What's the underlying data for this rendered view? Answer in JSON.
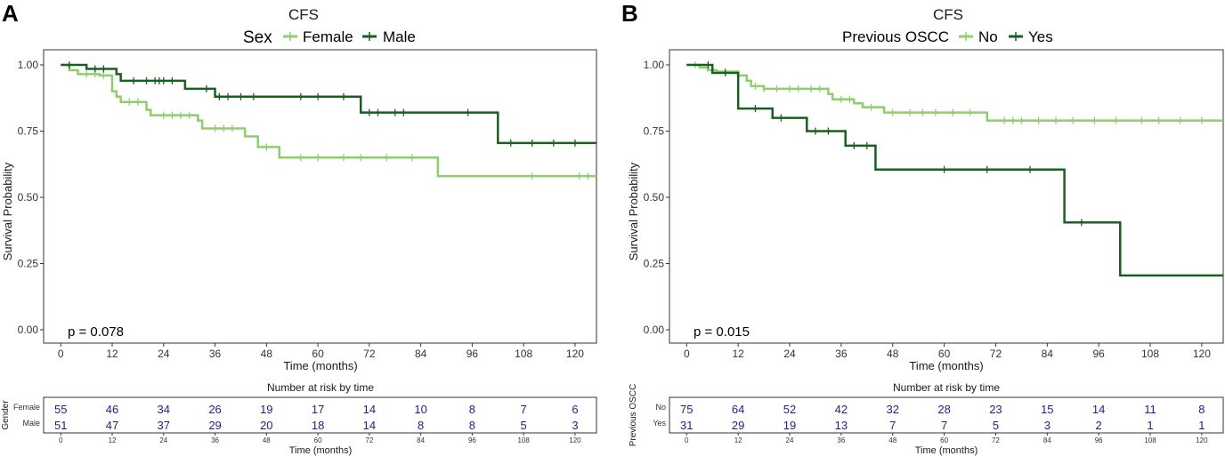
{
  "chart_data": [
    {
      "type": "line",
      "panel_label": "A",
      "title": "CFS",
      "legend_title": "Sex",
      "xlabel": "Time (months)",
      "ylabel": "Survival Probability",
      "xlim": [
        -4,
        125
      ],
      "ylim": [
        0,
        1
      ],
      "x_ticks": [
        "0",
        "12",
        "24",
        "36",
        "48",
        "60",
        "72",
        "84",
        "96",
        "108",
        "120"
      ],
      "y_ticks": [
        "0.00",
        "0.25",
        "0.50",
        "0.75",
        "1.00"
      ],
      "annotation": "p = 0.078",
      "series": [
        {
          "name": "Female",
          "color": "#8fce70",
          "steps": [
            [
              0,
              1.0
            ],
            [
              2,
              0.98
            ],
            [
              4,
              0.965
            ],
            [
              9,
              0.96
            ],
            [
              12,
              0.9
            ],
            [
              13,
              0.88
            ],
            [
              14,
              0.86
            ],
            [
              20,
              0.83
            ],
            [
              21,
              0.81
            ],
            [
              32,
              0.79
            ],
            [
              33,
              0.76
            ],
            [
              43,
              0.73
            ],
            [
              46,
              0.69
            ],
            [
              51,
              0.65
            ],
            [
              88,
              0.58
            ],
            [
              125,
              0.58
            ]
          ],
          "censor": [
            6,
            8,
            10,
            16,
            18,
            24,
            26,
            28,
            30,
            36,
            38,
            40,
            48,
            56,
            60,
            66,
            70,
            76,
            82,
            110,
            121,
            123
          ]
        },
        {
          "name": "Male",
          "color": "#1a5e20",
          "steps": [
            [
              0,
              1.0
            ],
            [
              6,
              0.985
            ],
            [
              13,
              0.965
            ],
            [
              14,
              0.94
            ],
            [
              29,
              0.91
            ],
            [
              36,
              0.88
            ],
            [
              70,
              0.82
            ],
            [
              97,
              0.82
            ],
            [
              97.5,
              0.82
            ],
            [
              102,
              0.705
            ],
            [
              125,
              0.705
            ]
          ],
          "censor": [
            2,
            8,
            10,
            17,
            20,
            22,
            23,
            24,
            26,
            34,
            37,
            39,
            42,
            45,
            56,
            60,
            66,
            72,
            74,
            78,
            80,
            95,
            105,
            110,
            115,
            120
          ]
        }
      ],
      "risk_table": {
        "title": "Number at risk by time",
        "group_axis_label": "Gender",
        "xlabel": "Time (months)",
        "groups": [
          "Female",
          "Male"
        ],
        "values": [
          [
            "55",
            "46",
            "34",
            "26",
            "19",
            "17",
            "14",
            "10",
            "8",
            "7",
            "6"
          ],
          [
            "51",
            "47",
            "37",
            "29",
            "20",
            "18",
            "14",
            "8",
            "8",
            "5",
            "3"
          ]
        ]
      }
    },
    {
      "type": "line",
      "panel_label": "B",
      "title": "CFS",
      "legend_title": "Previous OSCC",
      "xlabel": "Time (months)",
      "ylabel": "Survival Probability",
      "xlim": [
        -4,
        125
      ],
      "ylim": [
        0,
        1
      ],
      "x_ticks": [
        "0",
        "12",
        "24",
        "36",
        "48",
        "60",
        "72",
        "84",
        "96",
        "108",
        "120"
      ],
      "y_ticks": [
        "0.00",
        "0.25",
        "0.50",
        "0.75",
        "1.00"
      ],
      "annotation": "p = 0.015",
      "series": [
        {
          "name": "No",
          "color": "#8fce70",
          "steps": [
            [
              0,
              1.0
            ],
            [
              3,
              0.99
            ],
            [
              5,
              0.98
            ],
            [
              7,
              0.975
            ],
            [
              12,
              0.96
            ],
            [
              14,
              0.94
            ],
            [
              15,
              0.92
            ],
            [
              18,
              0.91
            ],
            [
              33,
              0.89
            ],
            [
              34,
              0.87
            ],
            [
              39,
              0.855
            ],
            [
              41,
              0.84
            ],
            [
              46,
              0.82
            ],
            [
              70,
              0.79
            ],
            [
              125,
              0.79
            ]
          ],
          "censor": [
            2,
            6,
            9,
            16,
            18,
            21,
            24,
            26,
            29,
            31,
            36,
            38,
            43,
            48,
            52,
            55,
            58,
            62,
            66,
            74,
            76,
            78,
            82,
            86,
            90,
            95,
            100,
            106,
            110,
            115,
            120
          ]
        },
        {
          "name": "Yes",
          "color": "#1a5e20",
          "steps": [
            [
              0,
              1.0
            ],
            [
              6,
              0.97
            ],
            [
              12,
              0.835
            ],
            [
              20,
              0.8
            ],
            [
              28,
              0.75
            ],
            [
              37,
              0.695
            ],
            [
              44,
              0.605
            ],
            [
              88,
              0.405
            ],
            [
              101,
              0.205
            ],
            [
              125,
              0.205
            ]
          ],
          "censor": [
            5,
            9,
            16,
            22,
            30,
            33,
            39,
            42,
            60,
            70,
            80,
            92
          ]
        }
      ],
      "risk_table": {
        "title": "Number at risk by time",
        "group_axis_label": "Previous OSCC",
        "xlabel": "Time (months)",
        "groups": [
          "No",
          "Yes"
        ],
        "values": [
          [
            "75",
            "64",
            "52",
            "42",
            "32",
            "28",
            "23",
            "15",
            "14",
            "11",
            "8"
          ],
          [
            "31",
            "29",
            "19",
            "13",
            "7",
            "7",
            "5",
            "3",
            "2",
            "1",
            "1"
          ]
        ]
      }
    }
  ]
}
